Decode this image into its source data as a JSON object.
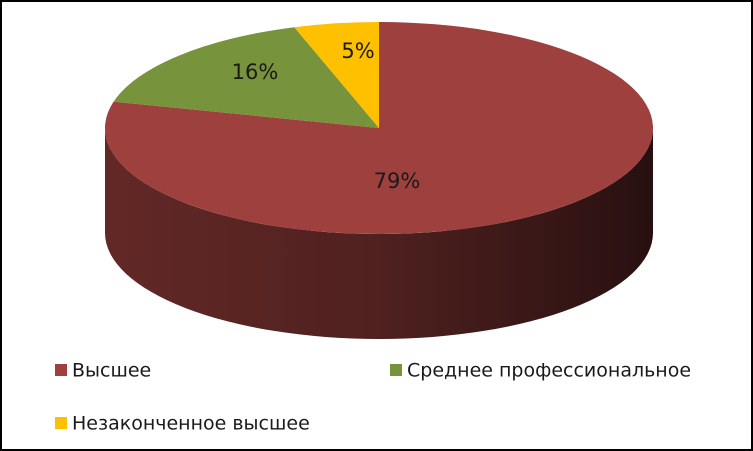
{
  "chart_data": {
    "type": "pie3d",
    "categories": [
      "Высшее",
      "Среднее профессиональное",
      "Незаконченное высшее"
    ],
    "values": [
      79,
      16,
      5
    ],
    "value_labels": [
      "79%",
      "16%",
      "5%"
    ],
    "colors": [
      "#9e413e",
      "#77933c",
      "#ffc000"
    ],
    "legend": "bottom"
  }
}
